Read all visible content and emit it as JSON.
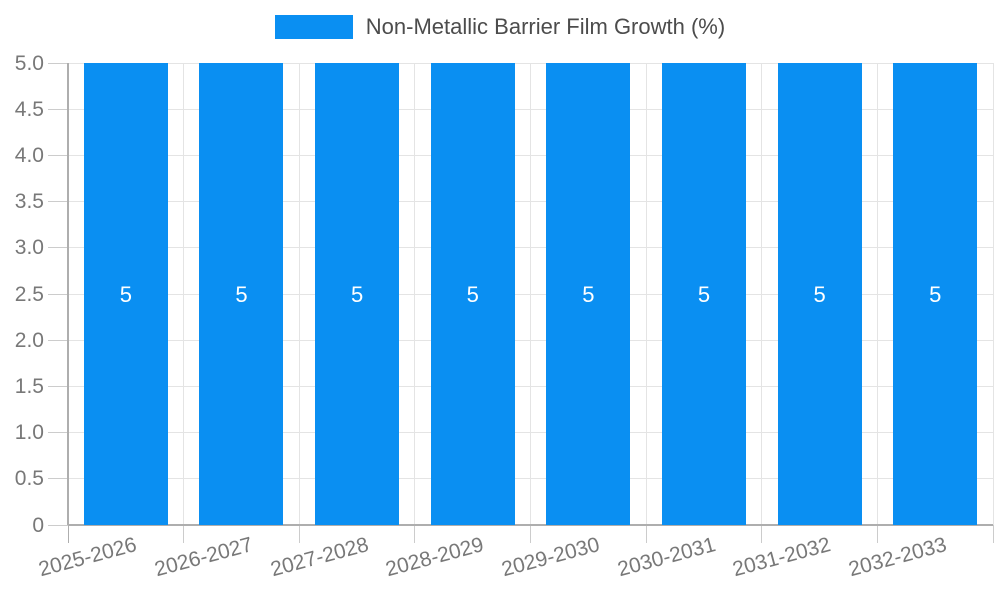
{
  "legend": {
    "label": "Non-Metallic Barrier Film Growth (%)"
  },
  "chart_data": {
    "type": "bar",
    "title": "",
    "xlabel": "",
    "ylabel": "",
    "categories": [
      "2025-2026",
      "2026-2027",
      "2027-2028",
      "2028-2029",
      "2029-2030",
      "2030-2031",
      "2031-2032",
      "2032-2033"
    ],
    "series": [
      {
        "name": "Non-Metallic Barrier Film Growth (%)",
        "values": [
          5,
          5,
          5,
          5,
          5,
          5,
          5,
          5
        ]
      }
    ],
    "bar_value_labels": [
      "5",
      "5",
      "5",
      "5",
      "5",
      "5",
      "5",
      "5"
    ],
    "ylim": [
      0,
      5
    ],
    "ytick_step": 0.5,
    "ytick_labels": [
      "0",
      "0.5",
      "1.0",
      "1.5",
      "2.0",
      "2.5",
      "3.0",
      "3.5",
      "4.0",
      "4.5",
      "5.0"
    ],
    "grid": true,
    "legend_position": "top-center",
    "x_label_rotation_deg": -15,
    "colors": {
      "bar": "#0a8ff2",
      "bar_label": "#ffffff",
      "axis_line": "#aeaeae",
      "grid_line": "#e4e4e4",
      "tick_mark": "#cccccc",
      "axis_tick_label": "#787878",
      "legend_text": "#4c4c4c",
      "background": "#ffffff"
    }
  }
}
